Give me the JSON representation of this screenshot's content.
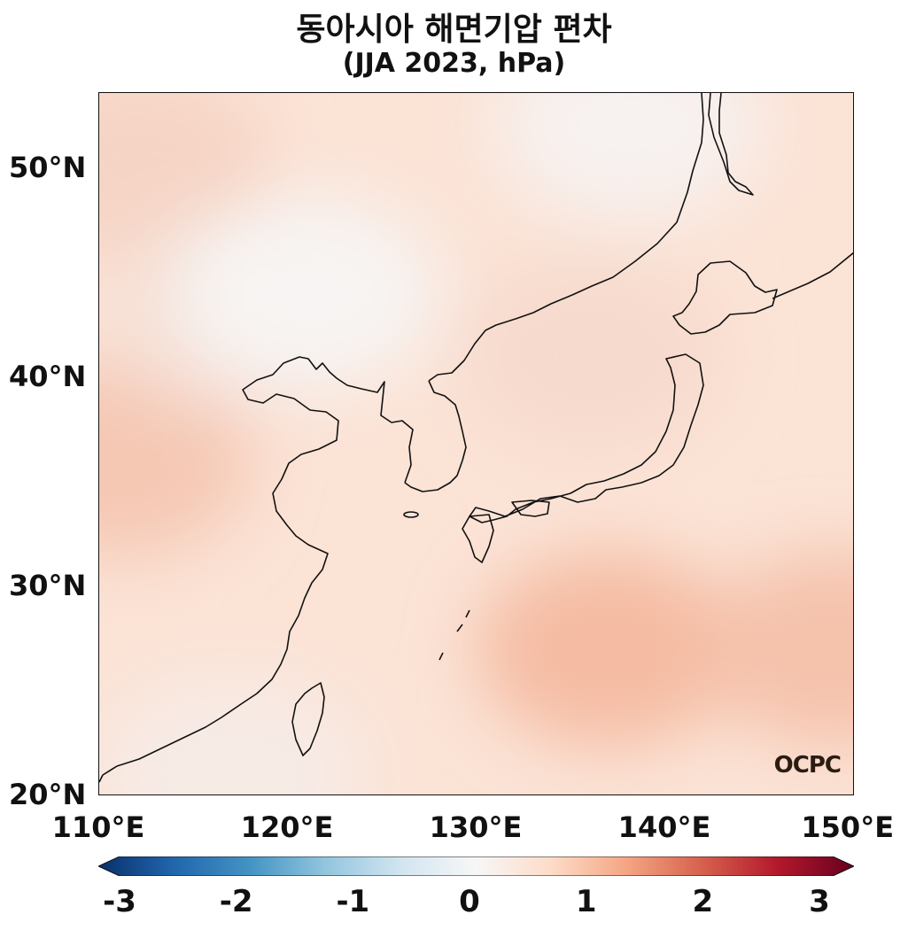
{
  "title": {
    "line1": "동아시아 해면기압 편차",
    "line2": "(JJA 2023, hPa)"
  },
  "latitude_labels": [
    "50°N",
    "40°N",
    "30°N",
    "20°N"
  ],
  "longitude_labels": [
    "110°E",
    "120°E",
    "130°E",
    "140°E",
    "150°E"
  ],
  "map_extent": {
    "lon_min": 110,
    "lon_max": 150,
    "lat_min": 20,
    "lat_max": 53.5
  },
  "colorbar": {
    "min": -3,
    "max": 3,
    "ticks": [
      "-3",
      "-2",
      "-1",
      "0",
      "1",
      "2",
      "3"
    ],
    "colors": [
      "#08306b",
      "#2166ac",
      "#4393c3",
      "#92c5de",
      "#d1e5f0",
      "#f7f7f7",
      "#fddbc7",
      "#f4a582",
      "#d6604d",
      "#b2182b",
      "#67001f"
    ]
  },
  "anomaly_regions": [
    {
      "name": "west-continent",
      "lon": 111,
      "lat": 36,
      "value": 0.8
    },
    {
      "name": "north-continent",
      "lon": 112,
      "lat": 50,
      "value": 0.6
    },
    {
      "name": "north-china",
      "lon": 117,
      "lat": 43,
      "value": 0.4
    },
    {
      "name": "mongolia-clear",
      "lon": 121,
      "lat": 44,
      "value": 0.05
    },
    {
      "name": "okhotsk",
      "lon": 138,
      "lat": 52,
      "value": 0.1
    },
    {
      "name": "sea-of-japan",
      "lon": 136,
      "lat": 41,
      "value": 0.5
    },
    {
      "name": "pacific-subtropical",
      "lon": 137,
      "lat": 27,
      "value": 1.0
    },
    {
      "name": "east-pacific",
      "lon": 149,
      "lat": 27,
      "value": 0.9
    },
    {
      "name": "south-china-sea",
      "lon": 117,
      "lat": 21,
      "value": 0.2
    }
  ],
  "logo": "OCPC"
}
